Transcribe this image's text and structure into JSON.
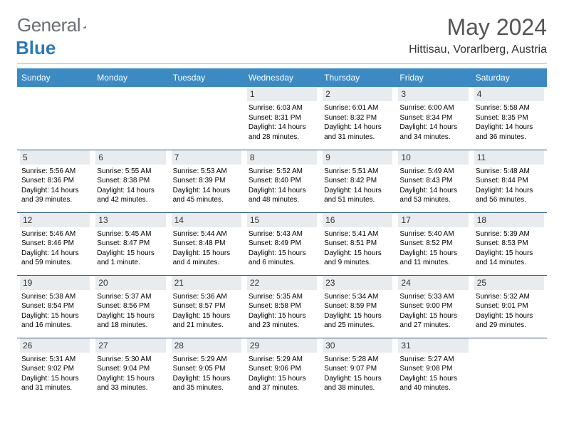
{
  "brand": {
    "text1": "General",
    "text2": "Blue"
  },
  "title": "May 2024",
  "location": "Hittisau, Vorarlberg, Austria",
  "colors": {
    "header_bg": "#3b8ac4",
    "header_text": "#ffffff",
    "daynum_bg": "#e9ecef",
    "rule": "#2a5a8a",
    "logo_gray": "#6b6f73",
    "logo_blue": "#2a7ab9"
  },
  "daysOfWeek": [
    "Sunday",
    "Monday",
    "Tuesday",
    "Wednesday",
    "Thursday",
    "Friday",
    "Saturday"
  ],
  "weeks": [
    [
      null,
      null,
      null,
      {
        "n": "1",
        "sr": "6:03 AM",
        "ss": "8:31 PM",
        "dl": "14 hours and 28 minutes."
      },
      {
        "n": "2",
        "sr": "6:01 AM",
        "ss": "8:32 PM",
        "dl": "14 hours and 31 minutes."
      },
      {
        "n": "3",
        "sr": "6:00 AM",
        "ss": "8:34 PM",
        "dl": "14 hours and 34 minutes."
      },
      {
        "n": "4",
        "sr": "5:58 AM",
        "ss": "8:35 PM",
        "dl": "14 hours and 36 minutes."
      }
    ],
    [
      {
        "n": "5",
        "sr": "5:56 AM",
        "ss": "8:36 PM",
        "dl": "14 hours and 39 minutes."
      },
      {
        "n": "6",
        "sr": "5:55 AM",
        "ss": "8:38 PM",
        "dl": "14 hours and 42 minutes."
      },
      {
        "n": "7",
        "sr": "5:53 AM",
        "ss": "8:39 PM",
        "dl": "14 hours and 45 minutes."
      },
      {
        "n": "8",
        "sr": "5:52 AM",
        "ss": "8:40 PM",
        "dl": "14 hours and 48 minutes."
      },
      {
        "n": "9",
        "sr": "5:51 AM",
        "ss": "8:42 PM",
        "dl": "14 hours and 51 minutes."
      },
      {
        "n": "10",
        "sr": "5:49 AM",
        "ss": "8:43 PM",
        "dl": "14 hours and 53 minutes."
      },
      {
        "n": "11",
        "sr": "5:48 AM",
        "ss": "8:44 PM",
        "dl": "14 hours and 56 minutes."
      }
    ],
    [
      {
        "n": "12",
        "sr": "5:46 AM",
        "ss": "8:46 PM",
        "dl": "14 hours and 59 minutes."
      },
      {
        "n": "13",
        "sr": "5:45 AM",
        "ss": "8:47 PM",
        "dl": "15 hours and 1 minute."
      },
      {
        "n": "14",
        "sr": "5:44 AM",
        "ss": "8:48 PM",
        "dl": "15 hours and 4 minutes."
      },
      {
        "n": "15",
        "sr": "5:43 AM",
        "ss": "8:49 PM",
        "dl": "15 hours and 6 minutes."
      },
      {
        "n": "16",
        "sr": "5:41 AM",
        "ss": "8:51 PM",
        "dl": "15 hours and 9 minutes."
      },
      {
        "n": "17",
        "sr": "5:40 AM",
        "ss": "8:52 PM",
        "dl": "15 hours and 11 minutes."
      },
      {
        "n": "18",
        "sr": "5:39 AM",
        "ss": "8:53 PM",
        "dl": "15 hours and 14 minutes."
      }
    ],
    [
      {
        "n": "19",
        "sr": "5:38 AM",
        "ss": "8:54 PM",
        "dl": "15 hours and 16 minutes."
      },
      {
        "n": "20",
        "sr": "5:37 AM",
        "ss": "8:56 PM",
        "dl": "15 hours and 18 minutes."
      },
      {
        "n": "21",
        "sr": "5:36 AM",
        "ss": "8:57 PM",
        "dl": "15 hours and 21 minutes."
      },
      {
        "n": "22",
        "sr": "5:35 AM",
        "ss": "8:58 PM",
        "dl": "15 hours and 23 minutes."
      },
      {
        "n": "23",
        "sr": "5:34 AM",
        "ss": "8:59 PM",
        "dl": "15 hours and 25 minutes."
      },
      {
        "n": "24",
        "sr": "5:33 AM",
        "ss": "9:00 PM",
        "dl": "15 hours and 27 minutes."
      },
      {
        "n": "25",
        "sr": "5:32 AM",
        "ss": "9:01 PM",
        "dl": "15 hours and 29 minutes."
      }
    ],
    [
      {
        "n": "26",
        "sr": "5:31 AM",
        "ss": "9:02 PM",
        "dl": "15 hours and 31 minutes."
      },
      {
        "n": "27",
        "sr": "5:30 AM",
        "ss": "9:04 PM",
        "dl": "15 hours and 33 minutes."
      },
      {
        "n": "28",
        "sr": "5:29 AM",
        "ss": "9:05 PM",
        "dl": "15 hours and 35 minutes."
      },
      {
        "n": "29",
        "sr": "5:29 AM",
        "ss": "9:06 PM",
        "dl": "15 hours and 37 minutes."
      },
      {
        "n": "30",
        "sr": "5:28 AM",
        "ss": "9:07 PM",
        "dl": "15 hours and 38 minutes."
      },
      {
        "n": "31",
        "sr": "5:27 AM",
        "ss": "9:08 PM",
        "dl": "15 hours and 40 minutes."
      },
      null
    ]
  ],
  "labels": {
    "sunrise": "Sunrise:",
    "sunset": "Sunset:",
    "daylight": "Daylight:"
  }
}
